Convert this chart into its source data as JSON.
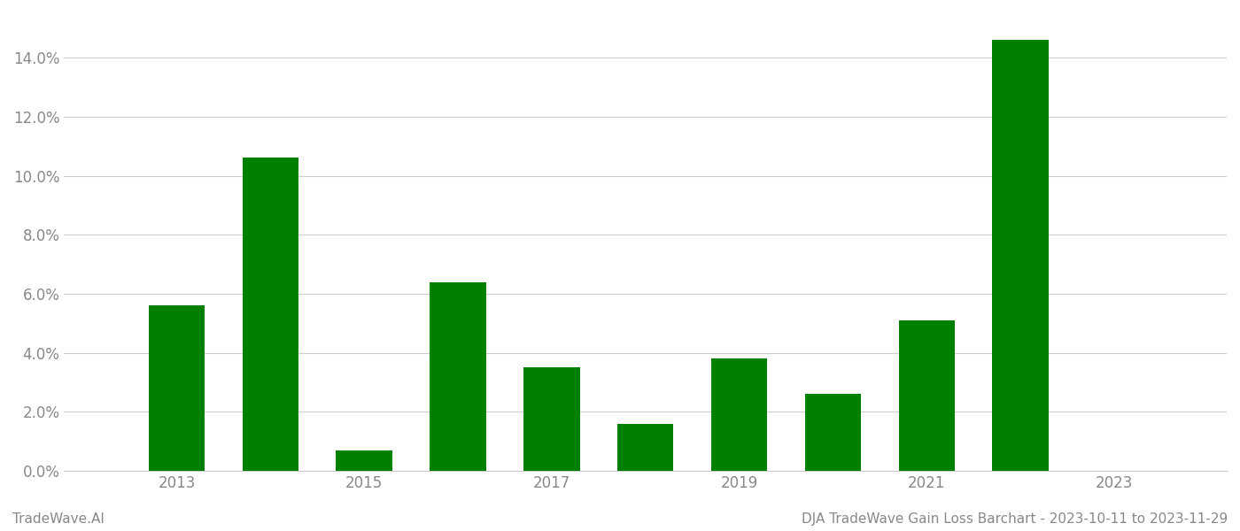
{
  "years": [
    2013,
    2014,
    2015,
    2016,
    2017,
    2018,
    2019,
    2020,
    2021,
    2022
  ],
  "values": [
    0.056,
    0.106,
    0.007,
    0.064,
    0.035,
    0.016,
    0.038,
    0.026,
    0.051,
    0.146
  ],
  "bar_color": "#008000",
  "background_color": "#ffffff",
  "grid_color": "#cccccc",
  "ytick_color": "#888888",
  "xtick_color": "#888888",
  "footer_left": "TradeWave.AI",
  "footer_right": "DJA TradeWave Gain Loss Barchart - 2023-10-11 to 2023-11-29",
  "footer_color": "#888888",
  "ylim_max": 0.155,
  "ytick_values": [
    0.0,
    0.02,
    0.04,
    0.06,
    0.08,
    0.1,
    0.12,
    0.14
  ],
  "xtick_labels": [
    "2013",
    "2015",
    "2017",
    "2019",
    "2021",
    "2023"
  ],
  "xtick_positions": [
    2013,
    2015,
    2017,
    2019,
    2021,
    2023
  ],
  "xlim_min": 2011.8,
  "xlim_max": 2024.2,
  "bar_width": 0.6
}
